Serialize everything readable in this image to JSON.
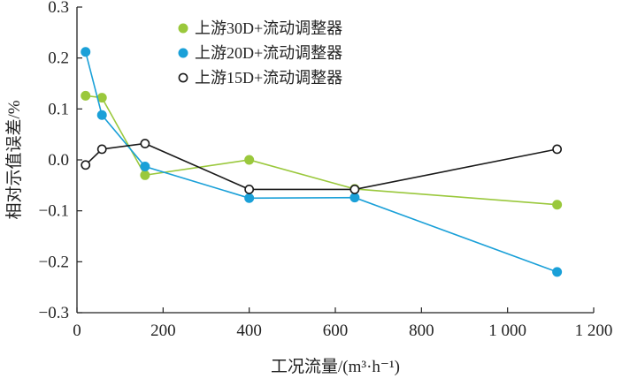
{
  "chart_data": {
    "type": "line",
    "title": "",
    "xlabel": "工况流量/(m³·h⁻¹)",
    "ylabel": "相对示值误差/%",
    "xlim": [
      0,
      1200
    ],
    "ylim": [
      -0.3,
      0.3
    ],
    "x_ticks": [
      0,
      200,
      400,
      600,
      800,
      1000,
      1200
    ],
    "x_tick_labels": [
      "0",
      "200",
      "400",
      "600",
      "800",
      "1 000",
      "1 200"
    ],
    "y_ticks": [
      0.3,
      0.2,
      0.1,
      0.0,
      -0.1,
      -0.2,
      -0.3
    ],
    "y_tick_labels": [
      "0.3",
      "0.2",
      "0.1",
      "0.0",
      "−0.1",
      "−0.2",
      "−0.3"
    ],
    "grid": false,
    "legend_position": "top-center",
    "series": [
      {
        "name": "上游30D+流动调整器",
        "color": "#9ac83c",
        "marker": "filled-circle",
        "x": [
          20,
          58,
          158,
          400,
          645,
          1115
        ],
        "y": [
          0.126,
          0.122,
          -0.03,
          0.0,
          -0.057,
          -0.088
        ]
      },
      {
        "name": "上游20D+流动调整器",
        "color": "#1aa0d8",
        "marker": "filled-circle",
        "x": [
          20,
          58,
          158,
          400,
          645,
          1115
        ],
        "y": [
          0.212,
          0.088,
          -0.013,
          -0.075,
          -0.074,
          -0.22
        ]
      },
      {
        "name": "上游15D+流动调整器",
        "color": "#1a1a1a",
        "marker": "open-circle",
        "x": [
          20,
          58,
          158,
          400,
          645,
          1115
        ],
        "y": [
          -0.01,
          0.021,
          0.032,
          -0.058,
          -0.058,
          0.021
        ]
      }
    ]
  }
}
